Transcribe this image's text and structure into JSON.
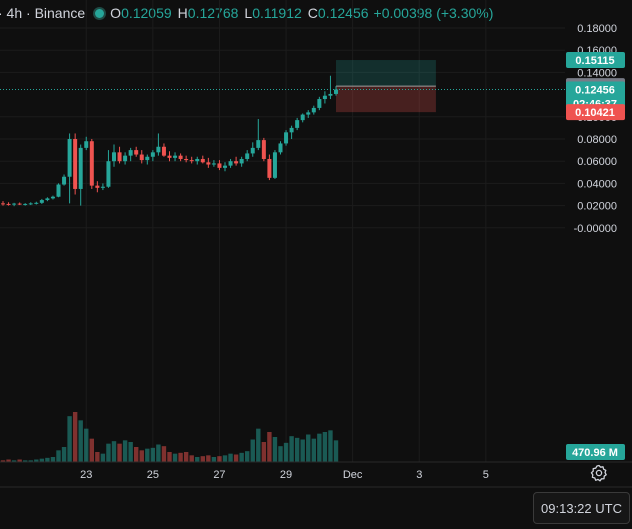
{
  "header": {
    "symbol": "· 4h · Binance",
    "open_label": "O",
    "open": "0.12059",
    "high_label": "H",
    "high": "0.12768",
    "low_label": "L",
    "low": "0.11912",
    "close_label": "C",
    "close": "0.12456",
    "change": "+0.00398 (+3.30%)"
  },
  "clock": "09:13:22 UTC",
  "colors": {
    "up": "#26a69a",
    "down": "#ef5350",
    "background": "#0f0f0f"
  },
  "chart_data": {
    "type": "candlestick",
    "grid": true,
    "y_axis": {
      "position": "right",
      "range": [
        -0.015,
        0.19
      ],
      "ticks": [
        {
          "label": "0.18000",
          "value": 0.18
        },
        {
          "label": "0.16000",
          "value": 0.16
        },
        {
          "label": "0.14000",
          "value": 0.14
        },
        {
          "label": "0.10000",
          "value": 0.1
        },
        {
          "label": "0.08000",
          "value": 0.08
        },
        {
          "label": "0.06000",
          "value": 0.06
        },
        {
          "label": "0.04000",
          "value": 0.04
        },
        {
          "label": "0.02000",
          "value": 0.02
        },
        {
          "label": "-0.00000",
          "value": 0.0
        }
      ]
    },
    "x_axis": {
      "ticks": [
        {
          "label": "23",
          "index": 15
        },
        {
          "label": "25",
          "index": 27
        },
        {
          "label": "27",
          "index": 39
        },
        {
          "label": "29",
          "index": 51
        },
        {
          "label": "Dec",
          "index": 63
        },
        {
          "label": "3",
          "index": 75
        },
        {
          "label": "5",
          "index": 87
        }
      ]
    },
    "candles": [
      [
        0.022,
        0.024,
        0.02,
        0.0215
      ],
      [
        0.0215,
        0.023,
        0.02,
        0.021
      ],
      [
        0.021,
        0.0225,
        0.0195,
        0.0218
      ],
      [
        0.0218,
        0.0228,
        0.0205,
        0.0212
      ],
      [
        0.0212,
        0.0222,
        0.02,
        0.0215
      ],
      [
        0.0215,
        0.023,
        0.0205,
        0.022
      ],
      [
        0.022,
        0.0235,
        0.021,
        0.0225
      ],
      [
        0.0225,
        0.026,
        0.0215,
        0.025
      ],
      [
        0.025,
        0.0275,
        0.024,
        0.0265
      ],
      [
        0.0265,
        0.029,
        0.0255,
        0.028
      ],
      [
        0.028,
        0.04,
        0.0275,
        0.039
      ],
      [
        0.039,
        0.048,
        0.038,
        0.046
      ],
      [
        0.046,
        0.085,
        0.022,
        0.08
      ],
      [
        0.08,
        0.085,
        0.03,
        0.035
      ],
      [
        0.035,
        0.075,
        0.02,
        0.072
      ],
      [
        0.072,
        0.082,
        0.07,
        0.078
      ],
      [
        0.078,
        0.08,
        0.035,
        0.038
      ],
      [
        0.038,
        0.042,
        0.032,
        0.036
      ],
      [
        0.036,
        0.04,
        0.034,
        0.037
      ],
      [
        0.037,
        0.07,
        0.036,
        0.06
      ],
      [
        0.06,
        0.075,
        0.055,
        0.068
      ],
      [
        0.068,
        0.073,
        0.058,
        0.06
      ],
      [
        0.06,
        0.068,
        0.057,
        0.065
      ],
      [
        0.065,
        0.072,
        0.06,
        0.07
      ],
      [
        0.07,
        0.073,
        0.064,
        0.066
      ],
      [
        0.066,
        0.07,
        0.058,
        0.061
      ],
      [
        0.061,
        0.066,
        0.057,
        0.064
      ],
      [
        0.064,
        0.07,
        0.06,
        0.068
      ],
      [
        0.068,
        0.085,
        0.065,
        0.073
      ],
      [
        0.073,
        0.076,
        0.064,
        0.065
      ],
      [
        0.065,
        0.069,
        0.06,
        0.063
      ],
      [
        0.063,
        0.068,
        0.06,
        0.065
      ],
      [
        0.065,
        0.067,
        0.06,
        0.062
      ],
      [
        0.062,
        0.065,
        0.059,
        0.061
      ],
      [
        0.061,
        0.064,
        0.058,
        0.06
      ],
      [
        0.06,
        0.064,
        0.057,
        0.062
      ],
      [
        0.062,
        0.065,
        0.058,
        0.059
      ],
      [
        0.059,
        0.063,
        0.054,
        0.057
      ],
      [
        0.057,
        0.061,
        0.055,
        0.058
      ],
      [
        0.058,
        0.061,
        0.052,
        0.054
      ],
      [
        0.054,
        0.059,
        0.051,
        0.056
      ],
      [
        0.056,
        0.062,
        0.054,
        0.06
      ],
      [
        0.06,
        0.064,
        0.056,
        0.058
      ],
      [
        0.058,
        0.064,
        0.055,
        0.062
      ],
      [
        0.062,
        0.07,
        0.06,
        0.067
      ],
      [
        0.067,
        0.077,
        0.064,
        0.072
      ],
      [
        0.072,
        0.098,
        0.07,
        0.079
      ],
      [
        0.079,
        0.081,
        0.06,
        0.062
      ],
      [
        0.062,
        0.066,
        0.043,
        0.045
      ],
      [
        0.045,
        0.07,
        0.044,
        0.068
      ],
      [
        0.068,
        0.078,
        0.066,
        0.076
      ],
      [
        0.076,
        0.088,
        0.074,
        0.086
      ],
      [
        0.086,
        0.092,
        0.08,
        0.09
      ],
      [
        0.09,
        0.099,
        0.088,
        0.097
      ],
      [
        0.097,
        0.103,
        0.095,
        0.102
      ],
      [
        0.102,
        0.106,
        0.099,
        0.104
      ],
      [
        0.104,
        0.11,
        0.102,
        0.108
      ],
      [
        0.108,
        0.118,
        0.106,
        0.116
      ],
      [
        0.116,
        0.123,
        0.112,
        0.119
      ],
      [
        0.119,
        0.137,
        0.116,
        0.1206
      ],
      [
        0.12059,
        0.12768,
        0.11912,
        0.12456
      ]
    ],
    "volume": {
      "label": "470.96 M",
      "values": [
        2,
        3,
        2,
        3,
        2,
        2,
        3,
        4,
        5,
        6,
        14,
        18,
        55,
        60,
        50,
        40,
        28,
        12,
        10,
        22,
        25,
        22,
        26,
        24,
        18,
        14,
        16,
        17,
        21,
        19,
        12,
        10,
        11,
        12,
        8,
        6,
        7,
        8,
        6,
        7,
        8,
        10,
        9,
        11,
        13,
        27,
        40,
        24,
        36,
        30,
        19,
        23,
        31,
        29,
        27,
        33,
        28,
        34,
        36,
        38,
        26
      ]
    },
    "price_labels": [
      {
        "label": "0.15115",
        "value": 0.15115,
        "kind": "take-profit"
      },
      {
        "label": "0.12768",
        "value": 0.12768,
        "kind": "high"
      },
      {
        "label": "0.12456",
        "value": 0.12456,
        "kind": "last",
        "sublabel": "02:46:37"
      },
      {
        "label": "0.10421",
        "value": 0.10421,
        "kind": "stop-loss"
      }
    ],
    "position_tool": {
      "entry": 0.12768,
      "target": 0.15115,
      "stop": 0.10421,
      "start_index": 60,
      "end_index": 78
    }
  }
}
